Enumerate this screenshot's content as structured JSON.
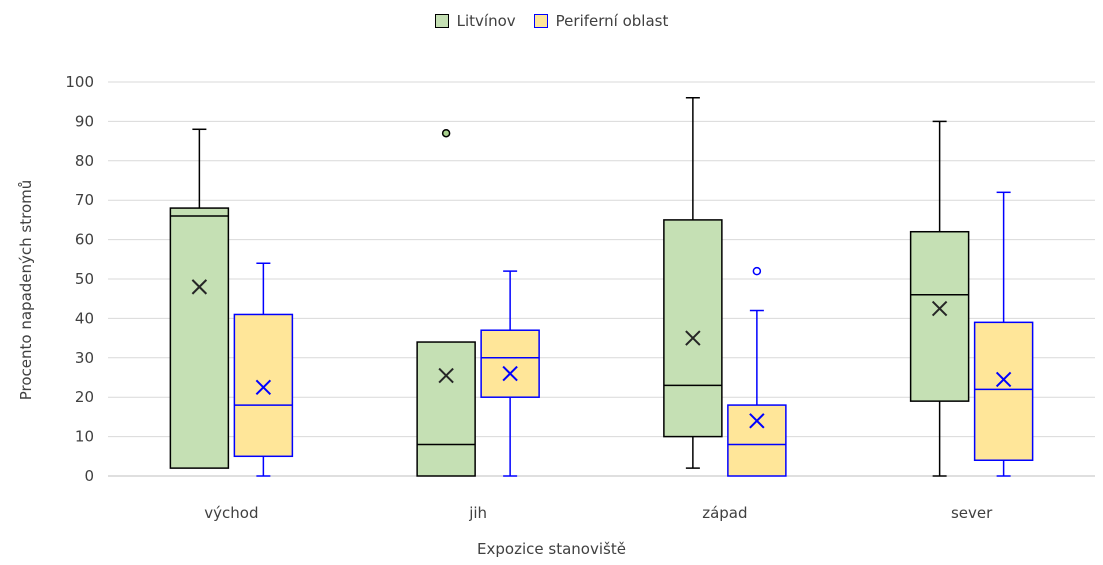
{
  "chart_data": {
    "type": "boxplot",
    "title": "",
    "xlabel": "Expozice stanoviště",
    "ylabel": "Procento napadených stromů",
    "ylim": [
      0,
      100
    ],
    "yticks": [
      0,
      10,
      20,
      30,
      40,
      50,
      60,
      70,
      80,
      90,
      100
    ],
    "grid": "horizontal",
    "legend_position": "top",
    "categories": [
      "východ",
      "jih",
      "západ",
      "sever"
    ],
    "series": [
      {
        "name": "Litvínov",
        "fill": "#c5e0b4",
        "stroke": "#000000",
        "mean_color": "#262626",
        "boxes": [
          {
            "min": 2,
            "q1": 2,
            "median": 66,
            "q3": 68,
            "max": 88,
            "mean": 48,
            "outliers": []
          },
          {
            "min": 0,
            "q1": 0,
            "median": 8,
            "q3": 34,
            "max": 34,
            "mean": 25.5,
            "outliers": [
              87
            ]
          },
          {
            "min": 2,
            "q1": 10,
            "median": 23,
            "q3": 65,
            "max": 96,
            "mean": 35,
            "outliers": []
          },
          {
            "min": 0,
            "q1": 19,
            "median": 46,
            "q3": 62,
            "max": 90,
            "mean": 42.5,
            "outliers": []
          }
        ]
      },
      {
        "name": "Periferní oblast",
        "fill": "#ffe699",
        "stroke": "#0000ff",
        "mean_color": "#0000ff",
        "boxes": [
          {
            "min": 0,
            "q1": 5,
            "median": 18,
            "q3": 41,
            "max": 54,
            "mean": 22.5,
            "outliers": []
          },
          {
            "min": 0,
            "q1": 20,
            "median": 30,
            "q3": 37,
            "max": 52,
            "mean": 26,
            "outliers": []
          },
          {
            "min": 0,
            "q1": 0,
            "median": 8,
            "q3": 18,
            "max": 42,
            "mean": 14,
            "outliers": [
              52
            ]
          },
          {
            "min": 0,
            "q1": 4,
            "median": 22,
            "q3": 39,
            "max": 72,
            "mean": 24.5,
            "outliers": []
          }
        ]
      }
    ]
  }
}
